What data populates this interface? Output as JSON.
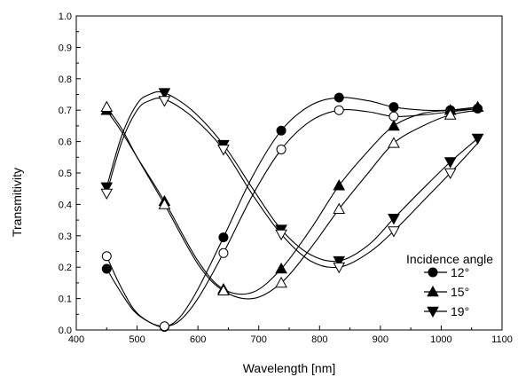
{
  "chart_data": {
    "type": "line",
    "title": "",
    "xlabel": "Wavelength [nm]",
    "ylabel": "Transmitivity",
    "xlim": [
      400,
      1100
    ],
    "ylim": [
      0.0,
      1.0
    ],
    "x_ticks": [
      400,
      500,
      600,
      700,
      800,
      900,
      1000,
      1100
    ],
    "y_ticks": [
      0.0,
      0.1,
      0.2,
      0.3,
      0.4,
      0.5,
      0.6,
      0.7,
      0.8,
      0.9,
      1.0
    ],
    "x_tick_labels": [
      "400",
      "500",
      "600",
      "700",
      "800",
      "900",
      "1000",
      "1100"
    ],
    "y_tick_labels": [
      "0.0",
      "0.1",
      "0.2",
      "0.3",
      "0.4",
      "0.5",
      "0.6",
      "0.7",
      "0.8",
      "0.9",
      "1.0"
    ],
    "grid": false,
    "legend_title": "Incidence angle",
    "legend_position": "bottom-right",
    "series": [
      {
        "name": "12°",
        "marker": "circle",
        "filled": true,
        "x": [
          450,
          545,
          642,
          737,
          832,
          922,
          1015,
          1060
        ],
        "y": [
          0.195,
          0.01,
          0.295,
          0.635,
          0.74,
          0.71,
          0.7,
          0.705
        ],
        "curve_x": [
          450,
          470,
          495,
          520,
          545,
          570,
          600,
          642,
          690,
          737,
          785,
          832,
          880,
          922,
          970,
          1015,
          1060
        ],
        "curve_y": [
          0.195,
          0.13,
          0.06,
          0.025,
          0.01,
          0.04,
          0.13,
          0.295,
          0.49,
          0.635,
          0.715,
          0.74,
          0.73,
          0.71,
          0.7,
          0.7,
          0.705
        ]
      },
      {
        "name": "",
        "marker": "circle",
        "filled": false,
        "x": [
          450,
          545,
          642,
          737,
          832,
          922,
          1015
        ],
        "y": [
          0.235,
          0.012,
          0.245,
          0.575,
          0.7,
          0.68,
          0.695
        ],
        "curve_x": [
          450,
          470,
          495,
          520,
          545,
          570,
          600,
          642,
          690,
          737,
          785,
          832,
          880,
          922,
          970,
          1015,
          1060
        ],
        "curve_y": [
          0.235,
          0.15,
          0.065,
          0.025,
          0.012,
          0.03,
          0.1,
          0.245,
          0.43,
          0.575,
          0.665,
          0.7,
          0.695,
          0.68,
          0.685,
          0.695,
          0.705
        ]
      },
      {
        "name": "15°",
        "marker": "triangle-up",
        "filled": true,
        "x": [
          450,
          545,
          642,
          737,
          832,
          922,
          1015,
          1060
        ],
        "y": [
          0.7,
          0.41,
          0.13,
          0.195,
          0.46,
          0.65,
          0.7,
          0.71
        ],
        "curve_x": [
          450,
          475,
          500,
          545,
          600,
          642,
          690,
          737,
          785,
          832,
          880,
          922,
          970,
          1015,
          1060
        ],
        "curve_y": [
          0.7,
          0.63,
          0.55,
          0.41,
          0.22,
          0.13,
          0.12,
          0.195,
          0.32,
          0.46,
          0.57,
          0.65,
          0.69,
          0.7,
          0.71
        ]
      },
      {
        "name": "",
        "marker": "triangle-up",
        "filled": false,
        "x": [
          450,
          545,
          642,
          737,
          832,
          922,
          1015
        ],
        "y": [
          0.71,
          0.4,
          0.125,
          0.15,
          0.385,
          0.595,
          0.685
        ],
        "curve_x": [
          450,
          475,
          500,
          545,
          600,
          642,
          690,
          737,
          785,
          832,
          880,
          922,
          970,
          1015,
          1060
        ],
        "curve_y": [
          0.71,
          0.64,
          0.55,
          0.4,
          0.21,
          0.125,
          0.1,
          0.15,
          0.26,
          0.385,
          0.5,
          0.595,
          0.65,
          0.685,
          0.7
        ]
      },
      {
        "name": "19°",
        "marker": "triangle-down",
        "filled": true,
        "x": [
          450,
          545,
          642,
          737,
          832,
          922,
          1015,
          1060
        ],
        "y": [
          0.455,
          0.755,
          0.59,
          0.32,
          0.22,
          0.355,
          0.535,
          0.61
        ],
        "curve_x": [
          450,
          475,
          500,
          520,
          545,
          590,
          642,
          690,
          737,
          785,
          832,
          880,
          922,
          970,
          1015,
          1060
        ],
        "curve_y": [
          0.455,
          0.62,
          0.72,
          0.75,
          0.755,
          0.7,
          0.59,
          0.45,
          0.32,
          0.24,
          0.22,
          0.27,
          0.355,
          0.45,
          0.535,
          0.61
        ]
      },
      {
        "name": "",
        "marker": "triangle-down",
        "filled": false,
        "x": [
          450,
          545,
          642,
          737,
          832,
          922,
          1015
        ],
        "y": [
          0.435,
          0.73,
          0.575,
          0.305,
          0.2,
          0.315,
          0.5
        ],
        "curve_x": [
          450,
          475,
          500,
          520,
          545,
          590,
          642,
          690,
          737,
          785,
          832,
          880,
          922,
          970,
          1015,
          1060
        ],
        "curve_y": [
          0.435,
          0.6,
          0.7,
          0.73,
          0.735,
          0.68,
          0.575,
          0.43,
          0.305,
          0.22,
          0.2,
          0.245,
          0.315,
          0.41,
          0.5,
          0.595
        ]
      }
    ]
  }
}
